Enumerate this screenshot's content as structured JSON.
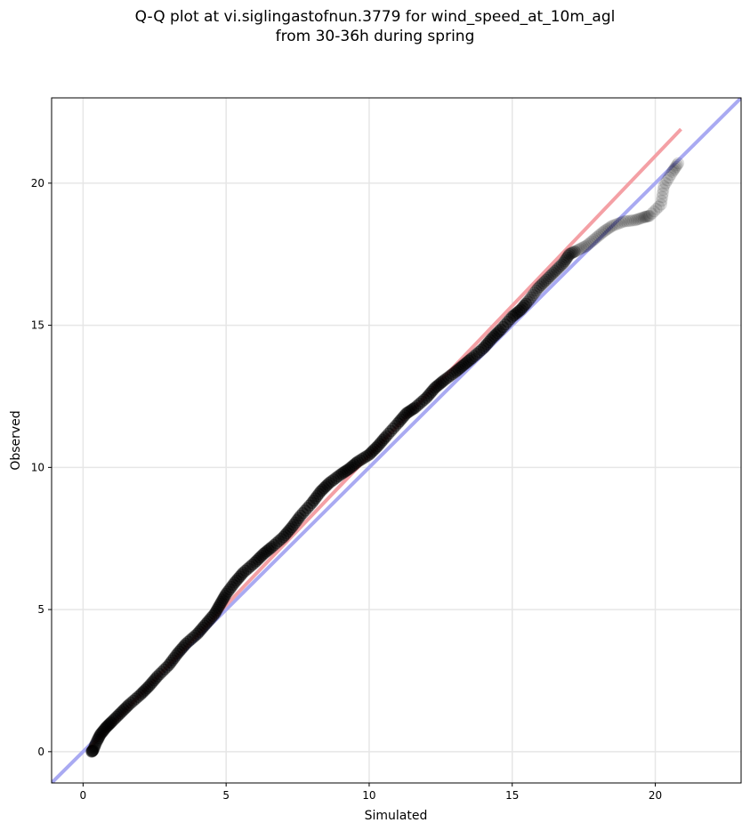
{
  "chart_data": {
    "type": "scatter",
    "title_lines": [
      "Q-Q plot at vi.siglingastofnun.3779 for wind_speed_at_10m_agl",
      "from 30-36h during spring"
    ],
    "xlabel": "Simulated",
    "ylabel": "Observed",
    "xlim": [
      -1.1,
      23.0
    ],
    "ylim": [
      -1.1,
      23.0
    ],
    "xticks": [
      0,
      5,
      10,
      15,
      20
    ],
    "yticks": [
      0,
      5,
      10,
      15,
      20
    ],
    "grid": true,
    "colors": {
      "points": "#000000",
      "fit_line": "#f4a0a5",
      "identity_line": "#a9aaf2",
      "grid": "#e6e6e6"
    },
    "fit_line": {
      "x": [
        0.2,
        20.9
      ],
      "y": [
        0.1,
        21.9
      ]
    },
    "identity_line": {
      "x": [
        -1.1,
        23.0
      ],
      "y": [
        -1.1,
        23.0
      ]
    },
    "quantiles": {
      "x": [
        0.3,
        0.35,
        0.45,
        0.6,
        0.8,
        1.0,
        1.3,
        1.6,
        2.0,
        2.3,
        2.6,
        3.0,
        3.3,
        3.6,
        4.0,
        4.3,
        4.6,
        4.8,
        5.0,
        5.3,
        5.6,
        6.0,
        6.3,
        6.6,
        7.0,
        7.3,
        7.6,
        8.0,
        8.3,
        8.6,
        9.0,
        9.3,
        9.6,
        10.0,
        10.3,
        10.6,
        11.0,
        11.3,
        11.6,
        12.0,
        12.3,
        12.6,
        13.0,
        13.3,
        13.6,
        14.0,
        14.3,
        14.6,
        15.0,
        15.3,
        15.6,
        15.9,
        16.2,
        16.5,
        16.8,
        17.0,
        17.3,
        17.6,
        17.9,
        18.2,
        18.5,
        18.9,
        19.3,
        19.6,
        19.8,
        20.2,
        20.3,
        20.6,
        20.8
      ],
      "y": [
        0.0,
        0.05,
        0.3,
        0.6,
        0.85,
        1.05,
        1.35,
        1.65,
        2.0,
        2.3,
        2.65,
        3.05,
        3.45,
        3.8,
        4.15,
        4.5,
        4.85,
        5.2,
        5.55,
        5.95,
        6.3,
        6.65,
        6.95,
        7.2,
        7.55,
        7.9,
        8.3,
        8.75,
        9.15,
        9.45,
        9.75,
        9.95,
        10.2,
        10.45,
        10.75,
        11.1,
        11.55,
        11.9,
        12.1,
        12.45,
        12.8,
        13.05,
        13.35,
        13.6,
        13.85,
        14.2,
        14.55,
        14.85,
        15.3,
        15.55,
        15.9,
        16.3,
        16.6,
        16.9,
        17.2,
        17.5,
        17.65,
        17.8,
        18.05,
        18.3,
        18.5,
        18.65,
        18.7,
        18.8,
        18.85,
        19.25,
        19.9,
        20.4,
        20.7
      ]
    }
  }
}
